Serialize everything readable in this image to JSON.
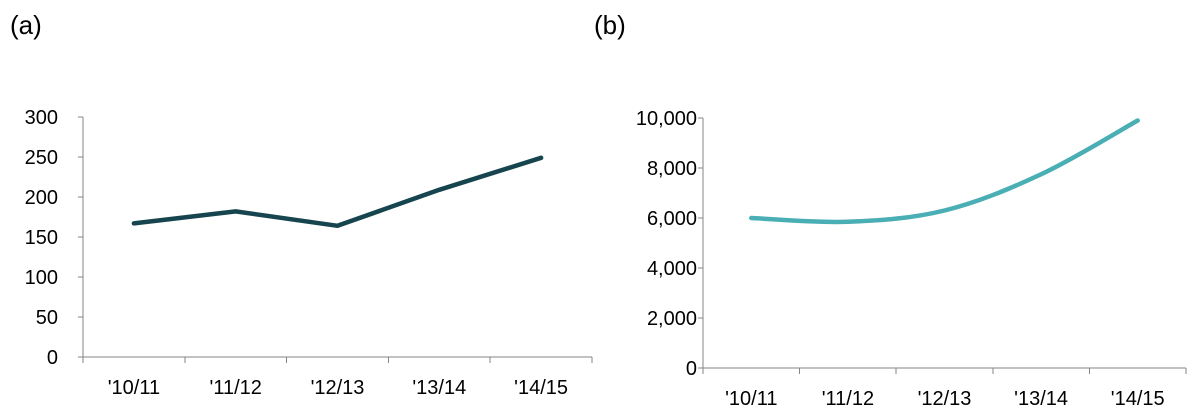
{
  "panels": [
    {
      "label": "(a)"
    },
    {
      "label": "(b)"
    }
  ],
  "chart_data": [
    {
      "type": "line",
      "title": "",
      "xlabel": "",
      "ylabel": "",
      "categories": [
        "'10/11",
        "'11/12",
        "'12/13",
        "'13/14",
        "'14/15"
      ],
      "series": [
        {
          "values": [
            167,
            182,
            164,
            209,
            249
          ],
          "color": "#17454f"
        }
      ],
      "ylim": [
        0,
        300
      ],
      "yticks": [
        0,
        50,
        100,
        150,
        200,
        250,
        300
      ],
      "ytick_labels": [
        "0",
        "50",
        "100",
        "150",
        "200",
        "250",
        "300"
      ],
      "grid": false,
      "legend": "none"
    },
    {
      "type": "line",
      "title": "",
      "xlabel": "",
      "ylabel": "",
      "categories": [
        "'10/11",
        "'11/12",
        "'12/13",
        "'13/14",
        "'14/15"
      ],
      "series": [
        {
          "values": [
            6000,
            5850,
            6300,
            7750,
            9900
          ],
          "color": "#4aaeb5",
          "smooth": true
        }
      ],
      "ylim": [
        0,
        10000
      ],
      "yticks": [
        0,
        2000,
        4000,
        6000,
        8000,
        10000
      ],
      "ytick_labels": [
        "0",
        "2,000",
        "4,000",
        "6,000",
        "8,000",
        "10,000"
      ],
      "grid": false,
      "legend": "none"
    }
  ]
}
